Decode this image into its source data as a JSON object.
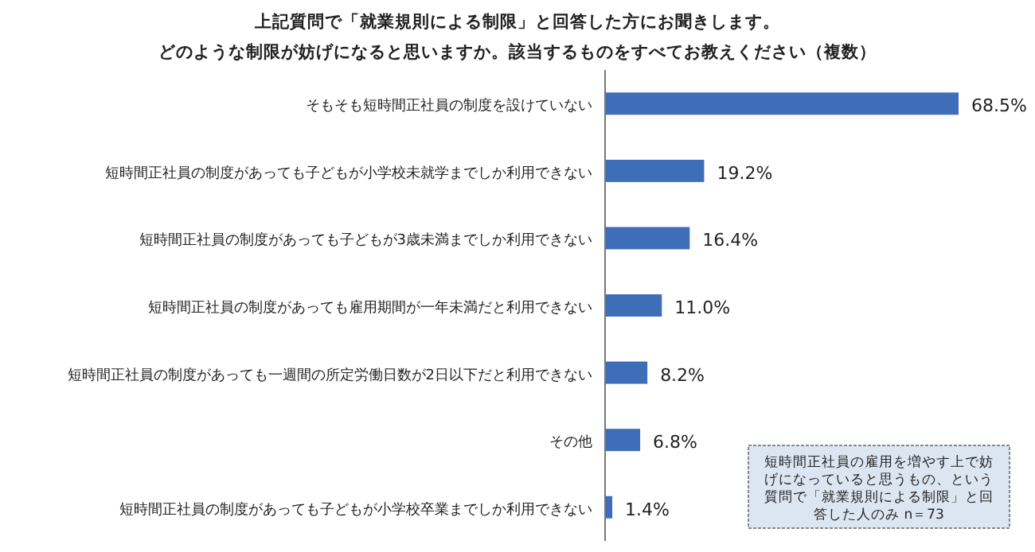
{
  "chart_data": {
    "type": "bar",
    "orientation": "horizontal",
    "title": "上記質問で「就業規則による制限」と回答した方にお聞きします。",
    "subtitle": "どのような制限が妨げになると思いますか。該当するものをすべてお教えください（複数）",
    "categories": [
      "そもそも短時間正社員の制度を設けていない",
      "短時間正社員の制度があっても子どもが小学校未就学までしか利用できない",
      "短時間正社員の制度があっても子どもが3歳未満までしか利用できない",
      "短時間正社員の制度があっても雇用期間が一年未満だと利用できない",
      "短時間正社員の制度があっても一週間の所定労働日数が2日以下だと利用できない",
      "その他",
      "短時間正社員の制度があっても子どもが小学校卒業までしか利用できない"
    ],
    "values": [
      68.5,
      19.2,
      16.4,
      11.0,
      8.2,
      6.8,
      1.4
    ],
    "value_labels": [
      "68.5%",
      "19.2%",
      "16.4%",
      "11.0%",
      "8.2%",
      "6.8%",
      "1.4%"
    ],
    "color": "#3f6eb8",
    "annotations": [
      "短時間正社員の雇用を増やす上で妨げになっていると思うもの、という質問で「就業規則による制限」と回答した人のみ n＝73"
    ]
  }
}
